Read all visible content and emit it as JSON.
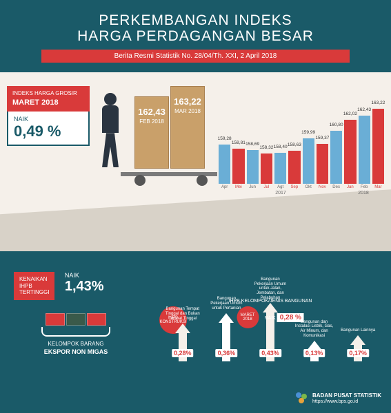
{
  "title_line1": "PERKEMBANGAN INDEKS",
  "title_line2": "HARGA PERDAGANGAN BESAR",
  "subtitle": "Berita Resmi Statistik No. 28/04/Th. XXI, 2 April 2018",
  "grosir": {
    "label": "INDEKS HARGA GROSIR",
    "month": "MARET 2018",
    "naik_label": "NAIK",
    "naik_value": "0,49 %"
  },
  "box1": {
    "value": "162,43",
    "period": "FEB 2018"
  },
  "box2": {
    "value": "163,22",
    "period": "MAR 2018"
  },
  "bar_chart": {
    "type": "bar",
    "ylim": [
      155,
      164
    ],
    "months": [
      "Apr",
      "Mei",
      "Jun",
      "Jul",
      "Agt",
      "Sep",
      "Okt",
      "Nov",
      "Des",
      "Jan",
      "Feb",
      "Mar"
    ],
    "values": [
      159.28,
      158.81,
      158.69,
      158.32,
      158.4,
      158.63,
      159.99,
      159.37,
      160.8,
      162.02,
      162.43,
      163.22
    ],
    "colors": [
      "#6aaed6",
      "#d93a3a",
      "#6aaed6",
      "#d93a3a",
      "#6aaed6",
      "#d93a3a",
      "#6aaed6",
      "#d93a3a",
      "#6aaed6",
      "#d93a3a",
      "#6aaed6",
      "#d93a3a"
    ],
    "red_idx": [
      1,
      3,
      5,
      7,
      9,
      11
    ],
    "year1": "2017",
    "year2": "2018"
  },
  "tertinggi": {
    "l1": "KENAIKAN",
    "l2": "IHPB",
    "l3": "TERTINGGI"
  },
  "naik_ekspor": {
    "label": "NAIK",
    "value": "1,43%"
  },
  "basket_label1": "KELOMPOK BARANG",
  "basket_label2": "EKSPOR NON MIGAS",
  "konstruksi": {
    "circle": "IHPB KONSTRUKSI",
    "maret_circle": "MARET 2018",
    "bottom_line": "IHPB KELOMPOK/JENIS BANGUNAN",
    "naik_label": "NAIK",
    "naik_value": "0,28 %",
    "items": [
      {
        "label": "Bangunan Tempat Tinggal dan Bukan Tempat Tinggal",
        "value": "0,28%",
        "height": 55,
        "color": "#f5f0ea"
      },
      {
        "label": "Bangunan Pekerjaan Umum untuk Pertanian",
        "value": "0,36%",
        "height": 70,
        "color": "#ffffff"
      },
      {
        "label": "Bangunan Pekerjaan Umum untuk Jalan, Jembatan, dan Pelabuhan",
        "value": "0,43%",
        "height": 85,
        "color": "#f5f0ea"
      },
      {
        "label": "Bangunan dan Instalasi Listrik, Gas, Air Minum, dan Komunikasi",
        "value": "0,13%",
        "height": 30,
        "color": "#ffffff"
      },
      {
        "label": "Bangunan Lainnya",
        "value": "0,17%",
        "height": 38,
        "color": "#f5f0ea"
      }
    ]
  },
  "bps": {
    "name": "BADAN PUSAT STATISTIK",
    "url": "https://www.bps.go.id"
  },
  "palette": {
    "bg": "#1a5a68",
    "red": "#d93a3a",
    "cream": "#f5f0ea",
    "box": "#c9a06a"
  }
}
